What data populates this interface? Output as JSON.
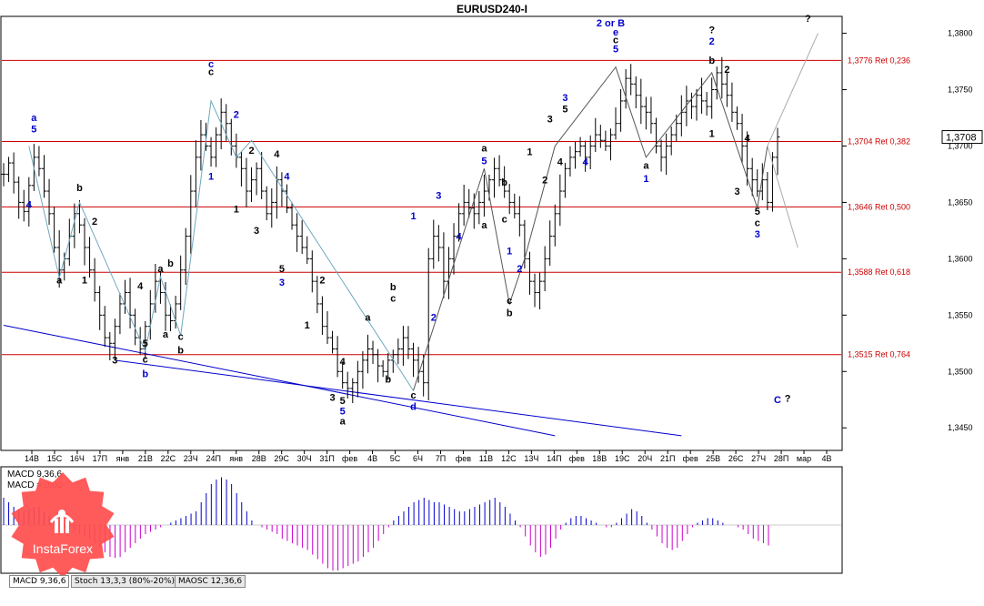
{
  "chart_data": {
    "type": "candlestick",
    "title": "EURUSD240-I",
    "ylim": [
      1.343,
      1.3815
    ],
    "yticks": [
      {
        "label": "1,3800",
        "value": 1.38
      },
      {
        "label": "1,3750",
        "value": 1.375
      },
      {
        "label": "1,3700",
        "value": 1.37
      },
      {
        "label": "1,3650",
        "value": 1.365
      },
      {
        "label": "1,3600",
        "value": 1.36
      },
      {
        "label": "1,3550",
        "value": 1.355
      },
      {
        "label": "1,3500",
        "value": 1.35
      },
      {
        "label": "1,3450",
        "value": 1.345
      }
    ],
    "current_price": {
      "label": "1,3708",
      "value": 1.3708
    },
    "x_labels": [
      "14В",
      "15С",
      "16Ч",
      "17П",
      "янв",
      "21В",
      "22С",
      "23Ч",
      "24П",
      "янв",
      "28В",
      "29С",
      "30Ч",
      "31П",
      "фев",
      "4В",
      "5С",
      "6Ч",
      "7П",
      "фев",
      "11В",
      "12С",
      "13Ч",
      "14П",
      "фев",
      "18В",
      "19С",
      "20Ч",
      "21П",
      "фев",
      "25В",
      "26С",
      "27Ч",
      "28П",
      "мар",
      "4В"
    ],
    "fib_levels": [
      {
        "label": "1,3776 Ret 0,236",
        "value": 1.3776
      },
      {
        "label": "1,3704 Ret 0,382",
        "value": 1.3704
      },
      {
        "label": "1,3646 Ret 0,500",
        "value": 1.3646
      },
      {
        "label": "1,3588 Ret 0,618",
        "value": 1.3588
      },
      {
        "label": "1,3515 Ret 0,764",
        "value": 1.3515
      }
    ],
    "closes": [
      1.3675,
      1.3685,
      1.3668,
      1.365,
      1.3642,
      1.3665,
      1.369,
      1.368,
      1.366,
      1.364,
      1.361,
      1.359,
      1.36,
      1.362,
      1.364,
      1.363,
      1.361,
      1.359,
      1.357,
      1.355,
      1.353,
      1.3525,
      1.354,
      1.356,
      1.357,
      1.355,
      1.353,
      1.352,
      1.354,
      1.356,
      1.358,
      1.357,
      1.355,
      1.3545,
      1.356,
      1.359,
      1.362,
      1.366,
      1.369,
      1.371,
      1.37,
      1.369,
      1.371,
      1.373,
      1.372,
      1.37,
      1.369,
      1.368,
      1.366,
      1.367,
      1.368,
      1.366,
      1.364,
      1.365,
      1.367,
      1.366,
      1.3645,
      1.363,
      1.362,
      1.361,
      1.36,
      1.358,
      1.356,
      1.354,
      1.353,
      1.352,
      1.35,
      1.349,
      1.3485,
      1.349,
      1.35,
      1.351,
      1.352,
      1.3515,
      1.3505,
      1.35,
      1.351,
      1.3515,
      1.352,
      1.353,
      1.352,
      1.351,
      1.35,
      1.349,
      1.36,
      1.362,
      1.361,
      1.358,
      1.36,
      1.362,
      1.364,
      1.365,
      1.3645,
      1.364,
      1.365,
      1.366,
      1.367,
      1.368,
      1.367,
      1.366,
      1.365,
      1.364,
      1.363,
      1.36,
      1.358,
      1.357,
      1.358,
      1.36,
      1.362,
      1.364,
      1.366,
      1.368,
      1.369,
      1.3695,
      1.37,
      1.369,
      1.37,
      1.371,
      1.3705,
      1.37,
      1.371,
      1.372,
      1.374,
      1.376,
      1.3755,
      1.3745,
      1.3735,
      1.373,
      1.372,
      1.37,
      1.369,
      1.37,
      1.371,
      1.372,
      1.373,
      1.374,
      1.3735,
      1.3745,
      1.374,
      1.3735,
      1.375,
      1.3765,
      1.3755,
      1.3745,
      1.373,
      1.372,
      1.37,
      1.368,
      1.367,
      1.366,
      1.367,
      1.365,
      1.369,
      1.3708
    ],
    "wave_labels": [
      {
        "text": "2 or B",
        "color": "#0000cc",
        "bar": 120,
        "price": 1.3806
      },
      {
        "text": "e",
        "color": "#0000cc",
        "bar": 121,
        "price": 1.3798
      },
      {
        "text": "c",
        "color": "#000000",
        "bar": 121,
        "price": 1.3791
      },
      {
        "text": "5",
        "color": "#0000cc",
        "bar": 121,
        "price": 1.3783
      },
      {
        "text": "?",
        "color": "#000000",
        "bar": 140,
        "price": 1.38
      },
      {
        "text": "2",
        "color": "#0000cc",
        "bar": 140,
        "price": 1.379
      },
      {
        "text": "b",
        "color": "#000000",
        "bar": 140,
        "price": 1.3773
      },
      {
        "text": "2",
        "color": "#000000",
        "bar": 143,
        "price": 1.3765
      },
      {
        "text": "?",
        "color": "#000000",
        "bar": 159,
        "price": 1.381
      },
      {
        "text": "c",
        "color": "#000000",
        "bar": 41,
        "price": 1.3763
      },
      {
        "text": "c",
        "color": "#0000cc",
        "bar": 41,
        "price": 1.377
      },
      {
        "text": "2",
        "color": "#0000cc",
        "bar": 46,
        "price": 1.3725
      },
      {
        "text": "a",
        "color": "#0000cc",
        "bar": 6,
        "price": 1.3722
      },
      {
        "text": "5",
        "color": "#0000cc",
        "bar": 6,
        "price": 1.3712
      },
      {
        "text": "4",
        "color": "#0000cc",
        "bar": 5,
        "price": 1.3645
      },
      {
        "text": "b",
        "color": "#000000",
        "bar": 15,
        "price": 1.366
      },
      {
        "text": "2",
        "color": "#000000",
        "bar": 18,
        "price": 1.363
      },
      {
        "text": "a",
        "color": "#000000",
        "bar": 11,
        "price": 1.3578
      },
      {
        "text": "1",
        "color": "#000000",
        "bar": 16,
        "price": 1.3578
      },
      {
        "text": "4",
        "color": "#000000",
        "bar": 27,
        "price": 1.3573
      },
      {
        "text": "a",
        "color": "#000000",
        "bar": 31,
        "price": 1.3588
      },
      {
        "text": "b",
        "color": "#000000",
        "bar": 33,
        "price": 1.3593
      },
      {
        "text": "a",
        "color": "#000000",
        "bar": 32,
        "price": 1.353
      },
      {
        "text": "c",
        "color": "#000000",
        "bar": 35,
        "price": 1.3528
      },
      {
        "text": "b",
        "color": "#000000",
        "bar": 35,
        "price": 1.3516
      },
      {
        "text": "5",
        "color": "#000000",
        "bar": 28,
        "price": 1.3522
      },
      {
        "text": "c",
        "color": "#000000",
        "bar": 28,
        "price": 1.3508
      },
      {
        "text": "b",
        "color": "#0000cc",
        "bar": 28,
        "price": 1.3495
      },
      {
        "text": "3",
        "color": "#000000",
        "bar": 22,
        "price": 1.3507
      },
      {
        "text": "1",
        "color": "#0000cc",
        "bar": 41,
        "price": 1.367
      },
      {
        "text": "2",
        "color": "#000000",
        "bar": 49,
        "price": 1.3693
      },
      {
        "text": "1",
        "color": "#000000",
        "bar": 46,
        "price": 1.3641
      },
      {
        "text": "4",
        "color": "#000000",
        "bar": 54,
        "price": 1.369
      },
      {
        "text": "4",
        "color": "#0000cc",
        "bar": 56,
        "price": 1.367
      },
      {
        "text": "3",
        "color": "#000000",
        "bar": 50,
        "price": 1.3622
      },
      {
        "text": "5",
        "color": "#000000",
        "bar": 55,
        "price": 1.3588
      },
      {
        "text": "3",
        "color": "#0000cc",
        "bar": 55,
        "price": 1.3576
      },
      {
        "text": "2",
        "color": "#000000",
        "bar": 63,
        "price": 1.3578
      },
      {
        "text": "1",
        "color": "#000000",
        "bar": 60,
        "price": 1.3538
      },
      {
        "text": "4",
        "color": "#000000",
        "bar": 67,
        "price": 1.3506
      },
      {
        "text": "3",
        "color": "#000000",
        "bar": 65,
        "price": 1.3474
      },
      {
        "text": "5",
        "color": "#000000",
        "bar": 67,
        "price": 1.3471
      },
      {
        "text": "5",
        "color": "#0000cc",
        "bar": 67,
        "price": 1.3462
      },
      {
        "text": "a",
        "color": "#000000",
        "bar": 67,
        "price": 1.3453
      },
      {
        "text": "a",
        "color": "#000000",
        "bar": 72,
        "price": 1.3545
      },
      {
        "text": "b",
        "color": "#000000",
        "bar": 77,
        "price": 1.3572
      },
      {
        "text": "c",
        "color": "#000000",
        "bar": 77,
        "price": 1.3562
      },
      {
        "text": "b",
        "color": "#000000",
        "bar": 76,
        "price": 1.349
      },
      {
        "text": "c",
        "color": "#000000",
        "bar": 81,
        "price": 1.3476
      },
      {
        "text": "d",
        "color": "#0000cc",
        "bar": 81,
        "price": 1.3466
      },
      {
        "text": "1",
        "color": "#0000cc",
        "bar": 81,
        "price": 1.3635
      },
      {
        "text": "2",
        "color": "#0000cc",
        "bar": 85,
        "price": 1.3545
      },
      {
        "text": "3",
        "color": "#0000cc",
        "bar": 86,
        "price": 1.3653
      },
      {
        "text": "4",
        "color": "#0000cc",
        "bar": 90,
        "price": 1.3617
      },
      {
        "text": "a",
        "color": "#000000",
        "bar": 95,
        "price": 1.3695
      },
      {
        "text": "5",
        "color": "#0000cc",
        "bar": 95,
        "price": 1.3684
      },
      {
        "text": "b",
        "color": "#000000",
        "bar": 99,
        "price": 1.3665
      },
      {
        "text": "a",
        "color": "#000000",
        "bar": 95,
        "price": 1.3627
      },
      {
        "text": "c",
        "color": "#000000",
        "bar": 99,
        "price": 1.3632
      },
      {
        "text": "1",
        "color": "#0000cc",
        "bar": 100,
        "price": 1.3604
      },
      {
        "text": "2",
        "color": "#0000cc",
        "bar": 102,
        "price": 1.3588
      },
      {
        "text": "c",
        "color": "#000000",
        "bar": 100,
        "price": 1.356
      },
      {
        "text": "b",
        "color": "#000000",
        "bar": 100,
        "price": 1.3549
      },
      {
        "text": "1",
        "color": "#000000",
        "bar": 104,
        "price": 1.3692
      },
      {
        "text": "2",
        "color": "#000000",
        "bar": 107,
        "price": 1.3667
      },
      {
        "text": "3",
        "color": "#000000",
        "bar": 108,
        "price": 1.3721
      },
      {
        "text": "4",
        "color": "#000000",
        "bar": 110,
        "price": 1.3683
      },
      {
        "text": "5",
        "color": "#000000",
        "bar": 111,
        "price": 1.373
      },
      {
        "text": "3",
        "color": "#0000cc",
        "bar": 111,
        "price": 1.374
      },
      {
        "text": "4",
        "color": "#0000cc",
        "bar": 115,
        "price": 1.3683
      },
      {
        "text": "a",
        "color": "#000000",
        "bar": 127,
        "price": 1.368
      },
      {
        "text": "1",
        "color": "#0000cc",
        "bar": 127,
        "price": 1.3668
      },
      {
        "text": "1",
        "color": "#000000",
        "bar": 140,
        "price": 1.3708
      },
      {
        "text": "4",
        "color": "#000000",
        "bar": 147,
        "price": 1.3704
      },
      {
        "text": "3",
        "color": "#000000",
        "bar": 145,
        "price": 1.3657
      },
      {
        "text": "5",
        "color": "#000000",
        "bar": 149,
        "price": 1.3639
      },
      {
        "text": "c",
        "color": "#000000",
        "bar": 149,
        "price": 1.3629
      },
      {
        "text": "3",
        "color": "#0000cc",
        "bar": 149,
        "price": 1.3619
      },
      {
        "text": "C",
        "color": "#0000cc",
        "bar": 153,
        "price": 1.3472
      },
      {
        "text": "?",
        "color": "#000000",
        "bar": 155,
        "price": 1.3473
      }
    ],
    "wave_path_thin": [
      [
        5,
        1.37
      ],
      [
        11,
        1.3583
      ],
      [
        15,
        1.365
      ],
      [
        28,
        1.3518
      ],
      [
        31,
        1.3584
      ],
      [
        35,
        1.3532
      ],
      [
        41,
        1.374
      ],
      [
        46,
        1.369
      ],
      [
        49,
        1.3705
      ],
      [
        81,
        1.3483
      ]
    ],
    "wave_path_black": [
      [
        81,
        1.3483
      ],
      [
        95,
        1.368
      ],
      [
        100,
        1.356
      ],
      [
        103,
        1.36
      ],
      [
        109,
        1.37
      ],
      [
        121,
        1.377
      ],
      [
        127,
        1.369
      ],
      [
        140,
        1.3765
      ],
      [
        149,
        1.3645
      ],
      [
        151,
        1.37
      ]
    ],
    "forecast_paths": [
      [
        [
          151,
          1.37
        ],
        [
          161,
          1.38
        ]
      ],
      [
        [
          151,
          1.37
        ],
        [
          157,
          1.361
        ]
      ]
    ],
    "channel_lines": [
      [
        [
          0,
          1.3541
        ],
        [
          109,
          1.3443
        ]
      ],
      [
        [
          22,
          1.351
        ],
        [
          134,
          1.3443
        ]
      ]
    ],
    "indicator": {
      "label": "MACD 9,36,6",
      "sublabel": "MACD = ",
      "value": "0,00",
      "histogram": [
        0.6,
        0.5,
        0.4,
        0.35,
        0.3,
        0.35,
        0.4,
        0.4,
        0.3,
        0.2,
        0.1,
        0.0,
        -0.05,
        -0.1,
        -0.15,
        -0.2,
        -0.25,
        -0.3,
        -0.4,
        -0.5,
        -0.6,
        -0.7,
        -0.72,
        -0.7,
        -0.6,
        -0.5,
        -0.4,
        -0.3,
        -0.2,
        -0.15,
        -0.1,
        -0.05,
        0.0,
        0.05,
        0.1,
        0.15,
        0.2,
        0.25,
        0.3,
        0.5,
        0.7,
        0.9,
        1.0,
        1.05,
        1.0,
        0.9,
        0.7,
        0.5,
        0.3,
        0.1,
        0.0,
        -0.05,
        -0.1,
        -0.15,
        -0.2,
        -0.3,
        -0.35,
        -0.4,
        -0.45,
        -0.5,
        -0.55,
        -0.65,
        -0.75,
        -0.85,
        -0.95,
        -1.0,
        -1.0,
        -0.95,
        -0.9,
        -0.85,
        -0.8,
        -0.7,
        -0.6,
        -0.5,
        -0.35,
        -0.2,
        -0.05,
        0.1,
        0.2,
        0.3,
        0.4,
        0.5,
        0.55,
        0.6,
        0.55,
        0.5,
        0.5,
        0.45,
        0.4,
        0.35,
        0.3,
        0.3,
        0.35,
        0.4,
        0.45,
        0.5,
        0.55,
        0.6,
        0.5,
        0.4,
        0.25,
        0.1,
        -0.05,
        -0.25,
        -0.45,
        -0.6,
        -0.7,
        -0.65,
        -0.5,
        -0.3,
        -0.1,
        0.05,
        0.15,
        0.2,
        0.2,
        0.15,
        0.1,
        0.05,
        0.0,
        -0.05,
        -0.05,
        0.05,
        0.15,
        0.25,
        0.35,
        0.3,
        0.2,
        0.05,
        -0.1,
        -0.25,
        -0.4,
        -0.5,
        -0.55,
        -0.5,
        -0.35,
        -0.2,
        -0.05,
        0.05,
        0.1,
        0.15,
        0.15,
        0.1,
        0.05,
        0.0,
        0.0,
        -0.05,
        -0.1,
        -0.2,
        -0.3,
        -0.35,
        -0.4,
        -0.45
      ]
    },
    "tabs": [
      "MACD 9,36,6",
      "Stoch 13,3,3 (80%-20%)",
      "MAOSC 12,36,6"
    ],
    "watermark": "InstaForex"
  }
}
